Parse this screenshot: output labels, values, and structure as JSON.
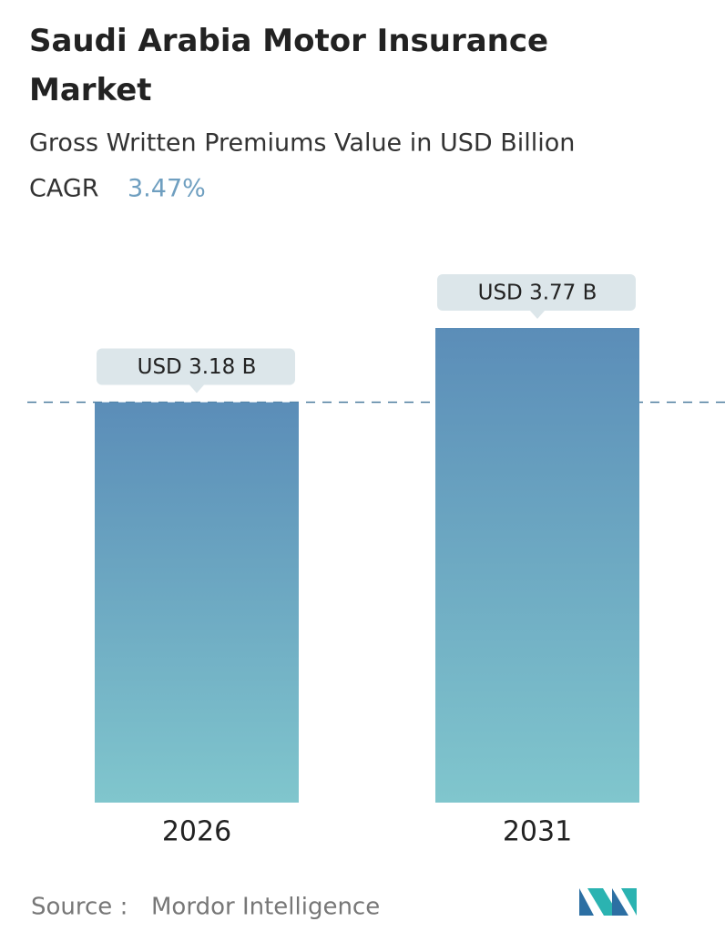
{
  "chart_data": {
    "type": "bar",
    "title": "Saudi Arabia Motor Insurance Market",
    "subtitle": "Gross Written Premiums Value in USD Billion",
    "cagr_label": "CAGR",
    "cagr_value": "3.47%",
    "categories": [
      "2026",
      "2031"
    ],
    "values": [
      3.18,
      3.77
    ],
    "value_labels": [
      "USD 3.18 B",
      "USD 3.77 B"
    ],
    "color_top": "#5b8db8",
    "color_bottom": "#80c6cd",
    "source_label": "Source :",
    "source": "Mordor Intelligence"
  }
}
